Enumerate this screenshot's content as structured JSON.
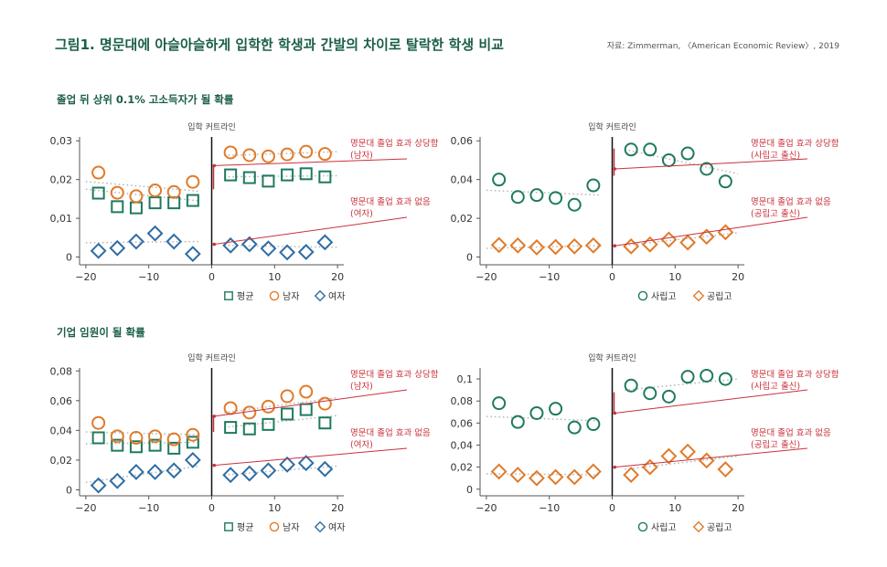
{
  "title": "그림1. 명문대에 아슬아슬하게 입학한 학생과 간발의 차이로 탈락한 학생 비교",
  "source": "자료: Zimmerman, 〈American Economic Review〉, 2019",
  "sections": [
    "졸업 뒤 상위 0.1% 고소득자가 될 확률",
    "기업 임원이 될 확률"
  ],
  "colors": {
    "avg": "#1e7a5e",
    "male": "#e07b2a",
    "female": "#2e6da4",
    "red": "#c8323c",
    "dots": "#b0b0b0"
  },
  "chart_data": [
    {
      "type": "scatter",
      "cutoff_label": "입학 커트라인",
      "xlim": [
        -21,
        21
      ],
      "ylim": [
        -0.002,
        0.031
      ],
      "xticks": [
        -20,
        -10,
        0,
        10,
        20
      ],
      "xtick_labels": [
        "−20",
        "−10",
        "0",
        "10",
        "20"
      ],
      "yticks": [
        0,
        0.01,
        0.02,
        0.03
      ],
      "ytick_labels": [
        "0",
        "0,01",
        "0,02",
        "0,03"
      ],
      "series": [
        {
          "name": "평균",
          "marker": "square",
          "color": "#1e7a5e",
          "x": [
            -18,
            -15,
            -12,
            -9,
            -6,
            -3,
            3,
            6,
            9,
            12,
            15,
            18
          ],
          "y": [
            0.0165,
            0.013,
            0.0127,
            0.014,
            0.014,
            0.0146,
            0.0212,
            0.0205,
            0.0196,
            0.0212,
            0.0215,
            0.0207
          ]
        },
        {
          "name": "남자",
          "marker": "circle",
          "color": "#e07b2a",
          "x": [
            -18,
            -15,
            -12,
            -9,
            -6,
            -3,
            3,
            6,
            9,
            12,
            15,
            18
          ],
          "y": [
            0.0218,
            0.0166,
            0.0157,
            0.0172,
            0.0168,
            0.0194,
            0.027,
            0.0263,
            0.026,
            0.0265,
            0.0272,
            0.0266
          ]
        },
        {
          "name": "여자",
          "marker": "diamond",
          "color": "#2e6da4",
          "x": [
            -18,
            -15,
            -12,
            -9,
            -6,
            -3,
            3,
            6,
            9,
            12,
            15,
            18
          ],
          "y": [
            0.0016,
            0.0023,
            0.004,
            0.0061,
            0.004,
            0.0008,
            0.003,
            0.0033,
            0.0022,
            0.0012,
            0.0013,
            0.0038
          ]
        }
      ],
      "fit_lines": [
        {
          "x": [
            -20,
            -2
          ],
          "y": [
            0.0175,
            0.0145
          ]
        },
        {
          "x": [
            -20,
            -2
          ],
          "y": [
            0.0195,
            0.017
          ]
        },
        {
          "x": [
            -20,
            -2
          ],
          "y": [
            0.0037,
            0.004
          ]
        },
        {
          "x": [
            2,
            20
          ],
          "y": [
            0.0207,
            0.021
          ]
        },
        {
          "x": [
            2,
            20
          ],
          "y": [
            0.0262,
            0.0272
          ]
        },
        {
          "x": [
            2,
            20
          ],
          "y": [
            0.003,
            0.0025
          ]
        }
      ],
      "jump": {
        "y": [
          0.0175,
          0.0235
        ]
      },
      "annotations": [
        {
          "text": [
            "명문대 졸업 효과 상당함",
            "(남자)"
          ],
          "from": [
            0.4,
            0.0236
          ]
        },
        {
          "text": [
            "명문대 졸업 효과 없음",
            "(여자)"
          ],
          "from": [
            0.4,
            0.0033
          ]
        }
      ],
      "legend": [
        "평균",
        "남자",
        "여자"
      ]
    },
    {
      "type": "scatter",
      "cutoff_label": "입학 커트라인",
      "xlim": [
        -21,
        21
      ],
      "ylim": [
        -0.004,
        0.062
      ],
      "xticks": [
        -20,
        -10,
        0,
        10,
        20
      ],
      "xtick_labels": [
        "−20",
        "−10",
        "0",
        "10",
        "20"
      ],
      "yticks": [
        0,
        0.02,
        0.04,
        0.06
      ],
      "ytick_labels": [
        "0",
        "0,02",
        "0,04",
        "0,06"
      ],
      "series": [
        {
          "name": "사립고",
          "marker": "circle",
          "color": "#1e7a5e",
          "x": [
            -18,
            -15,
            -12,
            -9,
            -6,
            -3,
            3,
            6,
            9,
            12,
            15,
            18
          ],
          "y": [
            0.04,
            0.031,
            0.032,
            0.0305,
            0.027,
            0.037,
            0.0555,
            0.0555,
            0.05,
            0.0535,
            0.0455,
            0.039
          ]
        },
        {
          "name": "공립고",
          "marker": "diamond",
          "color": "#e07b2a",
          "x": [
            -18,
            -15,
            -12,
            -9,
            -6,
            -3,
            3,
            6,
            9,
            12,
            15,
            18
          ],
          "y": [
            0.0062,
            0.006,
            0.005,
            0.0052,
            0.0055,
            0.006,
            0.0055,
            0.0065,
            0.009,
            0.0075,
            0.0105,
            0.0128
          ]
        }
      ],
      "fit_lines": [
        {
          "x": [
            -20,
            -2
          ],
          "y": [
            0.0345,
            0.032
          ]
        },
        {
          "x": [
            -20,
            -2
          ],
          "y": [
            0.0045,
            0.006
          ]
        },
        {
          "x": [
            2,
            20
          ],
          "y": [
            0.0555,
            0.043
          ]
        },
        {
          "x": [
            2,
            20
          ],
          "y": [
            0.006,
            0.0125
          ]
        }
      ],
      "jump": {
        "y": [
          0.042,
          0.056
        ]
      },
      "annotations": [
        {
          "text": [
            "명문대 졸업 효과 상당함",
            "(사립고 출신)"
          ],
          "from": [
            0.4,
            0.0455
          ]
        },
        {
          "text": [
            "명문대 졸업 효과 없음",
            "(공립고 출신)"
          ],
          "from": [
            0.4,
            0.0058
          ]
        }
      ],
      "legend": [
        "사립고",
        "공립고"
      ]
    },
    {
      "type": "scatter",
      "cutoff_label": "입학 커트라인",
      "xlim": [
        -21,
        21
      ],
      "ylim": [
        -0.004,
        0.082
      ],
      "xticks": [
        -20,
        -10,
        0,
        10,
        20
      ],
      "xtick_labels": [
        "−20",
        "−10",
        "0",
        "10",
        "20"
      ],
      "yticks": [
        0,
        0.02,
        0.04,
        0.06,
        0.08
      ],
      "ytick_labels": [
        "0",
        "0,02",
        "0,04",
        "0,06",
        "0,08"
      ],
      "series": [
        {
          "name": "평균",
          "marker": "square",
          "color": "#1e7a5e",
          "x": [
            -18,
            -15,
            -12,
            -9,
            -6,
            -3,
            3,
            6,
            9,
            12,
            15,
            18
          ],
          "y": [
            0.035,
            0.03,
            0.029,
            0.03,
            0.028,
            0.032,
            0.042,
            0.041,
            0.044,
            0.051,
            0.054,
            0.045
          ]
        },
        {
          "name": "남자",
          "marker": "circle",
          "color": "#e07b2a",
          "x": [
            -18,
            -15,
            -12,
            -9,
            -6,
            -3,
            3,
            6,
            9,
            12,
            15,
            18
          ],
          "y": [
            0.045,
            0.036,
            0.035,
            0.036,
            0.034,
            0.037,
            0.055,
            0.052,
            0.056,
            0.063,
            0.066,
            0.058
          ]
        },
        {
          "name": "여자",
          "marker": "diamond",
          "color": "#2e6da4",
          "x": [
            -18,
            -15,
            -12,
            -9,
            -6,
            -3,
            3,
            6,
            9,
            12,
            15,
            18
          ],
          "y": [
            0.003,
            0.006,
            0.012,
            0.012,
            0.013,
            0.02,
            0.01,
            0.011,
            0.013,
            0.017,
            0.018,
            0.014
          ]
        }
      ],
      "fit_lines": [
        {
          "x": [
            -20,
            -2
          ],
          "y": [
            0.031,
            0.032
          ]
        },
        {
          "x": [
            -20,
            -2
          ],
          "y": [
            0.039,
            0.037
          ]
        },
        {
          "x": [
            -20,
            -2
          ],
          "y": [
            0.005,
            0.016
          ]
        },
        {
          "x": [
            2,
            20
          ],
          "y": [
            0.042,
            0.05
          ]
        },
        {
          "x": [
            2,
            20
          ],
          "y": [
            0.052,
            0.062
          ]
        },
        {
          "x": [
            2,
            20
          ],
          "y": [
            0.01,
            0.016
          ]
        }
      ],
      "jump": {
        "y": [
          0.039,
          0.05
        ]
      },
      "annotations": [
        {
          "text": [
            "명문대 졸업 효과 상당함",
            "(남자)"
          ],
          "from": [
            0.4,
            0.0495
          ]
        },
        {
          "text": [
            "명문대 졸업 효과 없음",
            "(여자)"
          ],
          "from": [
            0.4,
            0.0165
          ]
        }
      ],
      "legend": [
        "평균",
        "남자",
        "여자"
      ]
    },
    {
      "type": "scatter",
      "cutoff_label": "입학 커트라인",
      "xlim": [
        -21,
        21
      ],
      "ylim": [
        -0.006,
        0.11
      ],
      "xticks": [
        -20,
        -10,
        0,
        10,
        20
      ],
      "xtick_labels": [
        "−20",
        "−10",
        "0",
        "10",
        "20"
      ],
      "yticks": [
        0,
        0.02,
        0.04,
        0.06,
        0.08,
        0.1
      ],
      "ytick_labels": [
        "0",
        "0,02",
        "0,04",
        "0,06",
        "0,08",
        "0,1"
      ],
      "series": [
        {
          "name": "사립고",
          "marker": "circle",
          "color": "#1e7a5e",
          "x": [
            -18,
            -15,
            -12,
            -9,
            -6,
            -3,
            3,
            6,
            9,
            12,
            15,
            18
          ],
          "y": [
            0.078,
            0.061,
            0.069,
            0.073,
            0.056,
            0.059,
            0.094,
            0.087,
            0.084,
            0.102,
            0.103,
            0.1
          ]
        },
        {
          "name": "공립고",
          "marker": "diamond",
          "color": "#e07b2a",
          "x": [
            -18,
            -15,
            -12,
            -9,
            -6,
            -3,
            3,
            6,
            9,
            12,
            15,
            18
          ],
          "y": [
            0.016,
            0.013,
            0.01,
            0.011,
            0.011,
            0.016,
            0.013,
            0.02,
            0.03,
            0.034,
            0.026,
            0.018
          ]
        }
      ],
      "fit_lines": [
        {
          "x": [
            -20,
            -2
          ],
          "y": [
            0.066,
            0.062
          ]
        },
        {
          "x": [
            -20,
            -2
          ],
          "y": [
            0.014,
            0.013
          ]
        },
        {
          "x": [
            2,
            20
          ],
          "y": [
            0.09,
            0.1
          ]
        },
        {
          "x": [
            2,
            20
          ],
          "y": [
            0.018,
            0.03
          ]
        }
      ],
      "jump": {
        "y": [
          0.068,
          0.088
        ]
      },
      "annotations": [
        {
          "text": [
            "명문대 졸업 효과 상당함",
            "(사립고 출신)"
          ],
          "from": [
            0.4,
            0.069
          ]
        },
        {
          "text": [
            "명문대 졸업 효과 없음",
            "(공립고 출신)"
          ],
          "from": [
            0.4,
            0.02
          ]
        }
      ],
      "legend": [
        "사립고",
        "공립고"
      ]
    }
  ]
}
